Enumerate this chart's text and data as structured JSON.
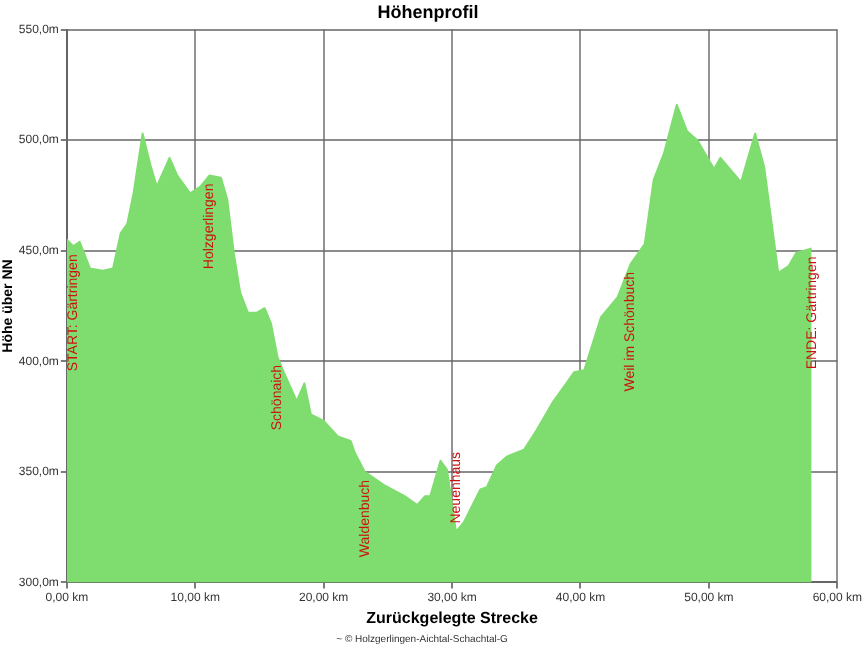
{
  "chart_data": {
    "type": "area",
    "title": "Höhenprofil",
    "xlabel": "Zurückgelegte Strecke",
    "ylabel": "Höhe über NN",
    "x": [
      0,
      0.5,
      1.0,
      1.8,
      2.8,
      3.6,
      4.2,
      4.7,
      5.2,
      5.9,
      6.5,
      7.0,
      8.0,
      8.6,
      9.6,
      10.4,
      11.1,
      12.0,
      12.5,
      13.0,
      13.5,
      14.1,
      14.8,
      15.4,
      15.9,
      16.4,
      16.9,
      17.9,
      18.5,
      19.0,
      20.0,
      21.1,
      22.1,
      22.4,
      23.2,
      24.7,
      26.3,
      27.3,
      27.9,
      28.3,
      29.1,
      29.6,
      30.3,
      30.9,
      32.2,
      32.7,
      33.5,
      34.3,
      35.6,
      36.6,
      37.9,
      38.9,
      39.5,
      40.3,
      41.6,
      42.9,
      43.9,
      45.0,
      45.7,
      46.5,
      47.5,
      48.3,
      49.1,
      50.4,
      50.9,
      52.5,
      53.6,
      54.3,
      55.4,
      56.2,
      56.8,
      58.0
    ],
    "series": [
      {
        "color": "#7fdd6f",
        "values": [
          455,
          452,
          454,
          442,
          441,
          442,
          458,
          462,
          476,
          503,
          489,
          479,
          492,
          484,
          476,
          479,
          484,
          483,
          473,
          449,
          431,
          422,
          422,
          424,
          417,
          402,
          395,
          382,
          390,
          376,
          373,
          366,
          364,
          359,
          350,
          344,
          339,
          335,
          339,
          339,
          355,
          351,
          323,
          327,
          342,
          343,
          353,
          357,
          360,
          369,
          382,
          390,
          395,
          396,
          420,
          429,
          444,
          453,
          482,
          494,
          516,
          504,
          500,
          487,
          492,
          481,
          503,
          488,
          440,
          443,
          449,
          451
        ]
      }
    ],
    "xlim": [
      0,
      60
    ],
    "xticks": [
      {
        "value": 0,
        "label": "0,00 km"
      },
      {
        "value": 10,
        "label": "10,00 km"
      },
      {
        "value": 20,
        "label": "20,00 km"
      },
      {
        "value": 30,
        "label": "30,00 km"
      },
      {
        "value": 40,
        "label": "40,00 km"
      },
      {
        "value": 50,
        "label": "50,00 km"
      },
      {
        "value": 60,
        "label": "60,00 km"
      }
    ],
    "ylim": [
      300,
      550
    ],
    "yticks": [
      {
        "value": 300,
        "label": "300,0m"
      },
      {
        "value": 350,
        "label": "350,0m"
      },
      {
        "value": 400,
        "label": "400,0m"
      },
      {
        "value": 450,
        "label": "450,0m"
      },
      {
        "value": 500,
        "label": "500,0m"
      },
      {
        "value": 550,
        "label": "550,0m"
      }
    ],
    "grid": true,
    "legend": false,
    "marker": "none",
    "line_style": "solid",
    "annotations": [
      {
        "text": "START: Gärtringen",
        "x": 0.5,
        "y": 452
      },
      {
        "text": "Holzgerlingen",
        "x": 11.1,
        "y": 484
      },
      {
        "text": "Schönaich",
        "x": 16.4,
        "y": 402
      },
      {
        "text": "Waldenbuch",
        "x": 23.2,
        "y": 350
      },
      {
        "text": "Neuenhaus",
        "x": 30.3,
        "y": 323
      },
      {
        "text": "Weil im Schönbuch",
        "x": 43.9,
        "y": 444
      },
      {
        "text": "ENDE: Gärtringen",
        "x": 58.0,
        "y": 451
      },
      "~ © Holzgerlingen-Aichtal-Schachtal-G"
    ]
  }
}
